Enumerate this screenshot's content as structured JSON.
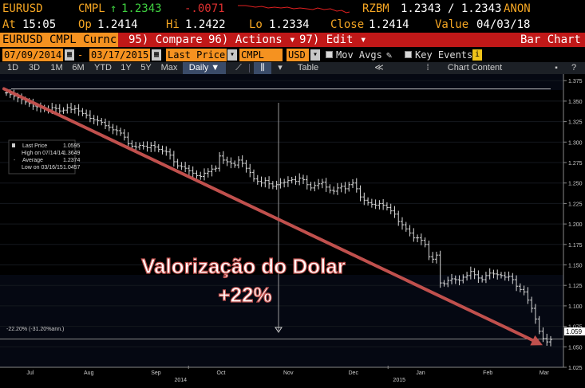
{
  "header": {
    "ticker": "EURUSD",
    "source": "CMPL",
    "arrow": "↑",
    "last": "1.2343",
    "change": "-.0071",
    "rzbm": "RZBM",
    "bid_ask": "1.2343 / 1.2343",
    "anon": "ANON",
    "at_label": "At",
    "at_time": "15:05",
    "op_label": "Op",
    "op_value": "1.2414",
    "hi_label": "Hi",
    "hi_value": "1.2422",
    "lo_label": "Lo",
    "lo_value": "1.2334",
    "close_label": "Close",
    "close_value": "1.2414",
    "value_label": "Value",
    "value_date": "04/03/18"
  },
  "menubar": {
    "security": "EURUSD CMPL Curnc",
    "compare_num": "95)",
    "compare": "Compare",
    "actions_num": "96)",
    "actions": "Actions ▾",
    "edit_num": "97)",
    "edit": "Edit",
    "edit_arrow": "▾",
    "chart_type": "Bar Chart"
  },
  "controls": {
    "start_date": "07/09/2014",
    "end_date": "03/17/2015",
    "field": "Last Price",
    "source": "CMPL",
    "currency": "USD",
    "mov_avgs": "Mov Avgs",
    "key_events": "Key Events",
    "info_badge": "i"
  },
  "toolbar": {
    "ranges": [
      "1D",
      "3D",
      "1M",
      "6M",
      "YTD",
      "1Y",
      "5Y",
      "Max"
    ],
    "period": "Daily ▼",
    "table": "Table",
    "collapse": "≪",
    "chart_content": "Chart Content"
  },
  "legend": {
    "last_label": "Last Price",
    "last_value": "1.0595",
    "high_label": "High on 07/14/14",
    "high_value": "1.3649",
    "avg_label": "Average",
    "avg_value": "1.2374",
    "low_label": "Low on 03/16/15",
    "low_value": "1.0457"
  },
  "annotation": {
    "line1": "Valorização do Dolar",
    "line2": "+22%",
    "pct_tag": "-22.20% (-31.20%ann.)",
    "price_tag": "1.059"
  },
  "chart_data": {
    "type": "bar",
    "series_name": "EURUSD CMPL Curnc Last Price",
    "x_range": [
      "2014-07-09",
      "2015-03-17"
    ],
    "ylim": [
      1.025,
      1.383
    ],
    "y_ticks": [
      1.375,
      1.35,
      1.325,
      1.3,
      1.275,
      1.25,
      1.225,
      1.2,
      1.175,
      1.15,
      1.125,
      1.1,
      1.075,
      1.05,
      1.025
    ],
    "y_tick_labels": [
      "1.375",
      "1.350",
      "1.325",
      "1.300",
      "1.275",
      "1.250",
      "1.225",
      "1.200",
      "1.175",
      "1.150",
      "1.125",
      "1.100",
      "1.075",
      "1.050",
      "1.025"
    ],
    "x_months": [
      "Jul",
      "Aug",
      "Sep",
      "Oct",
      "Nov",
      "Dec",
      "Jan",
      "Feb",
      "Mar"
    ],
    "x_years": [
      "2014",
      "2015"
    ],
    "trend_line": {
      "from": 1.365,
      "to": 1.052,
      "color": "#c0504d"
    },
    "high_line": 1.3649,
    "last": 1.0595,
    "closes": [
      1.36,
      1.358,
      1.356,
      1.354,
      1.352,
      1.349,
      1.347,
      1.344,
      1.343,
      1.342,
      1.34,
      1.339,
      1.342,
      1.341,
      1.338,
      1.339,
      1.342,
      1.34,
      1.341,
      1.338,
      1.335,
      1.333,
      1.329,
      1.327,
      1.326,
      1.324,
      1.32,
      1.318,
      1.315,
      1.314,
      1.311,
      1.306,
      1.298,
      1.295,
      1.294,
      1.296,
      1.295,
      1.293,
      1.296,
      1.294,
      1.291,
      1.289,
      1.288,
      1.284,
      1.276,
      1.271,
      1.27,
      1.268,
      1.265,
      1.262,
      1.259,
      1.258,
      1.262,
      1.264,
      1.267,
      1.268,
      1.283,
      1.278,
      1.276,
      1.274,
      1.272,
      1.278,
      1.274,
      1.268,
      1.263,
      1.255,
      1.252,
      1.25,
      1.253,
      1.249,
      1.246,
      1.248,
      1.25,
      1.251,
      1.253,
      1.254,
      1.252,
      1.256,
      1.254,
      1.248,
      1.244,
      1.247,
      1.249,
      1.251,
      1.245,
      1.241,
      1.24,
      1.244,
      1.246,
      1.243,
      1.248,
      1.25,
      1.243,
      1.233,
      1.229,
      1.226,
      1.224,
      1.223,
      1.225,
      1.223,
      1.22,
      1.216,
      1.212,
      1.203,
      1.199,
      1.194,
      1.189,
      1.183,
      1.183,
      1.18,
      1.175,
      1.16,
      1.157,
      1.162,
      1.128,
      1.127,
      1.131,
      1.133,
      1.132,
      1.131,
      1.135,
      1.137,
      1.142,
      1.138,
      1.134,
      1.132,
      1.137,
      1.14,
      1.139,
      1.138,
      1.137,
      1.135,
      1.136,
      1.132,
      1.124,
      1.12,
      1.117,
      1.107,
      1.097,
      1.084,
      1.069,
      1.06,
      1.056,
      1.059
    ]
  }
}
